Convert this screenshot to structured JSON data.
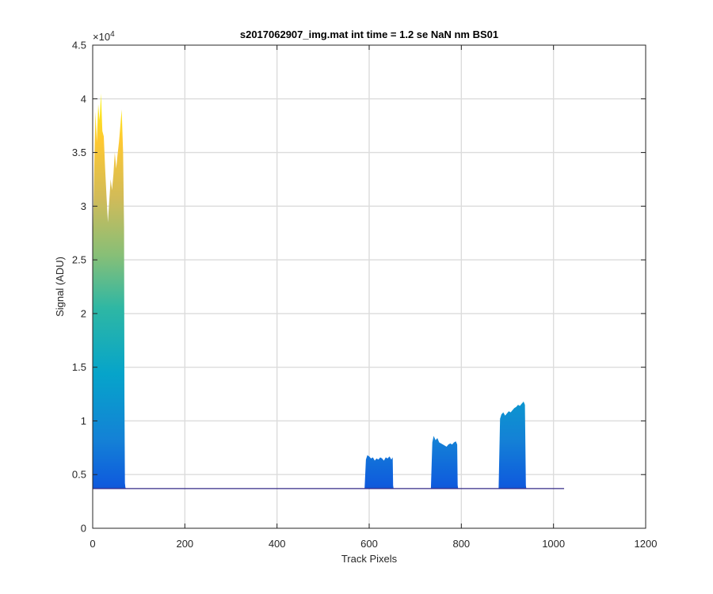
{
  "chart_data": {
    "type": "area",
    "title": "s2017062907_img.mat int time = 1.2 se  NaN nm BS01",
    "xlabel": "Track Pixels",
    "ylabel": "Signal (ADU)",
    "xlim": [
      0,
      1200
    ],
    "ylim": [
      0,
      45000
    ],
    "x_ticks": [
      0,
      200,
      400,
      600,
      800,
      1000,
      1200
    ],
    "x_tick_labels": [
      "0",
      "200",
      "400",
      "600",
      "800",
      "1000",
      "1200"
    ],
    "y_ticks": [
      0,
      5000,
      10000,
      15000,
      20000,
      25000,
      30000,
      35000,
      40000,
      45000
    ],
    "y_tick_labels": [
      "0",
      "0.5",
      "1",
      "1.5",
      "2",
      "2.5",
      "3",
      "3.5",
      "4",
      "4.5"
    ],
    "y_exponent_label": "×10",
    "y_exponent_power": "4",
    "grid": true,
    "baseline": 3700,
    "colormap": "parula",
    "colormap_stops": [
      "#352a87",
      "#0f5cdd",
      "#1481d6",
      "#06a4ca",
      "#2eb7a4",
      "#87bf77",
      "#d1bb59",
      "#fec832",
      "#f9fb0e"
    ],
    "series": [
      {
        "x": [
          0,
          3,
          6,
          9,
          12,
          15,
          18,
          21,
          24,
          27,
          30,
          33,
          36,
          39,
          42,
          45,
          48,
          51,
          54,
          57,
          60,
          63,
          66,
          68,
          69,
          70,
          71,
          72,
          1023
        ],
        "y": [
          26000,
          33000,
          38800,
          36000,
          39500,
          38000,
          40500,
          37000,
          36500,
          33500,
          31000,
          28500,
          30500,
          32500,
          31500,
          33000,
          35000,
          33500,
          34800,
          36000,
          37500,
          39000,
          35000,
          28000,
          12000,
          4200,
          3800,
          3700,
          3700
        ]
      },
      {
        "x": [
          590,
          593,
          596,
          600,
          604,
          608,
          612,
          616,
          620,
          624,
          628,
          632,
          636,
          640,
          644,
          648,
          651,
          652,
          653
        ],
        "y": [
          3700,
          6400,
          6800,
          6700,
          6500,
          6600,
          6300,
          6500,
          6400,
          6600,
          6500,
          6300,
          6600,
          6500,
          6700,
          6400,
          6600,
          4000,
          3700
        ]
      },
      {
        "x": [
          734,
          737,
          740,
          744,
          748,
          752,
          756,
          760,
          764,
          768,
          772,
          776,
          780,
          784,
          788,
          791,
          792,
          793
        ],
        "y": [
          3700,
          8000,
          8600,
          8200,
          8400,
          8000,
          7900,
          7800,
          7700,
          7600,
          7800,
          7900,
          7800,
          8000,
          8100,
          7800,
          4000,
          3700
        ]
      },
      {
        "x": [
          881,
          884,
          887,
          891,
          895,
          899,
          903,
          907,
          911,
          915,
          919,
          923,
          927,
          931,
          935,
          938,
          940,
          941
        ],
        "y": [
          3700,
          10200,
          10600,
          10800,
          10500,
          10700,
          10900,
          10800,
          11000,
          11200,
          11300,
          11500,
          11400,
          11600,
          11800,
          11500,
          4000,
          3700
        ]
      }
    ]
  }
}
